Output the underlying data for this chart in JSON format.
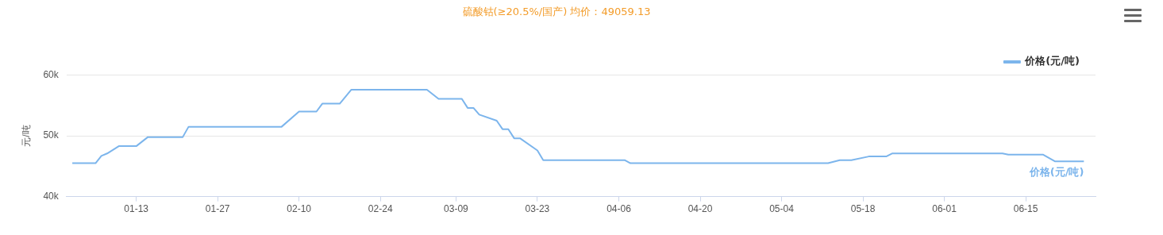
{
  "chart_data": {
    "type": "line",
    "title": "硫酸钴(≥20.5%/国产) 均价：49059.13",
    "ylabel": "元/吨",
    "x": [
      "--01-02",
      "--01-06",
      "--01-07",
      "--01-08",
      "--01-10",
      "--01-13",
      "--01-15",
      "--01-21",
      "--01-22",
      "--02-07",
      "--02-10",
      "--02-13",
      "--02-14",
      "--02-17",
      "--02-19",
      "--03-04",
      "--03-06",
      "--03-10",
      "--03-11",
      "--03-12",
      "--03-13",
      "--03-16",
      "--03-17",
      "--03-18",
      "--03-19",
      "--03-20",
      "--03-23",
      "--03-24",
      "--04-07",
      "--04-08",
      "--05-12",
      "--05-14",
      "--05-16",
      "--05-19",
      "--05-22",
      "--05-23",
      "--06-11",
      "--06-12",
      "--06-18",
      "--06-20",
      "--06-25"
    ],
    "series": [
      {
        "name": "价格(元/吨)",
        "color": "#7cb5ec",
        "values": [
          45500,
          45500,
          46700,
          47100,
          48300,
          48300,
          49800,
          49800,
          51500,
          51500,
          54000,
          54000,
          55300,
          55300,
          57600,
          57600,
          56100,
          56100,
          54600,
          54600,
          53500,
          52500,
          51100,
          51100,
          49600,
          49600,
          47600,
          46000,
          46000,
          45500,
          45500,
          46000,
          46000,
          46600,
          46600,
          47100,
          47100,
          46900,
          46900,
          45800,
          45800
        ]
      }
    ],
    "xlim": [
      "--01-01",
      "--06-27"
    ],
    "xticks": [
      {
        "value": "--01-13",
        "label": "01-13"
      },
      {
        "value": "--01-27",
        "label": "01-27"
      },
      {
        "value": "--02-10",
        "label": "02-10"
      },
      {
        "value": "--02-24",
        "label": "02-24"
      },
      {
        "value": "--03-09",
        "label": "03-09"
      },
      {
        "value": "--03-23",
        "label": "03-23"
      },
      {
        "value": "--04-06",
        "label": "04-06"
      },
      {
        "value": "--04-20",
        "label": "04-20"
      },
      {
        "value": "--05-04",
        "label": "05-04"
      },
      {
        "value": "--05-18",
        "label": "05-18"
      },
      {
        "value": "--06-01",
        "label": "06-01"
      },
      {
        "value": "--06-15",
        "label": "06-15"
      }
    ],
    "ylim": [
      40000,
      60000
    ],
    "yticks": [
      {
        "value": 40000,
        "label": "40k"
      },
      {
        "value": 50000,
        "label": "50k"
      },
      {
        "value": 60000,
        "label": "60k"
      }
    ],
    "grid": "y",
    "legend": "top right",
    "marker": "none",
    "line_style": "solid"
  }
}
